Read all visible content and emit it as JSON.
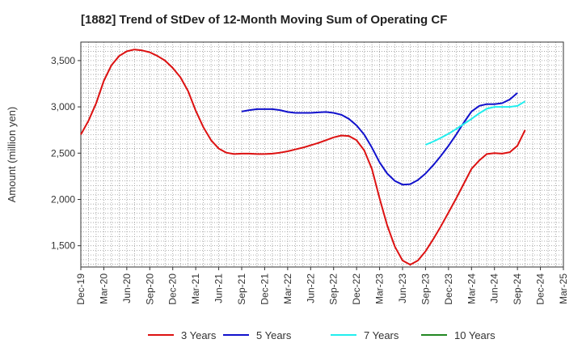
{
  "chart_data": {
    "type": "line",
    "title": "[1882]  Trend of StDev of 12-Month Moving Sum of Operating CF",
    "xlabel": "",
    "ylabel": "Amount (million yen)",
    "ylim": [
      1270,
      3700
    ],
    "y_ticks": [
      1500,
      2000,
      2500,
      3000,
      3500
    ],
    "y_tick_labels": [
      "1,500",
      "2,000",
      "2,500",
      "3,000",
      "3,500"
    ],
    "x_start": "Dec-19",
    "x_tick_labels": [
      "Dec-19",
      "Mar-20",
      "Jun-20",
      "Sep-20",
      "Dec-20",
      "Mar-21",
      "Jun-21",
      "Sep-21",
      "Dec-21",
      "Mar-22",
      "Jun-22",
      "Sep-22",
      "Dec-22",
      "Mar-23",
      "Jun-23",
      "Sep-23",
      "Dec-23",
      "Mar-24",
      "Jun-24",
      "Sep-24",
      "Dec-24",
      "Mar-25"
    ],
    "grid": true,
    "legend_position": "bottom",
    "series": [
      {
        "name": "3 Years",
        "color": "#dd1111",
        "start_month_index": 0,
        "values": [
          2700,
          2850,
          3040,
          3280,
          3450,
          3550,
          3600,
          3620,
          3610,
          3590,
          3550,
          3500,
          3420,
          3320,
          3170,
          2960,
          2780,
          2640,
          2550,
          2505,
          2490,
          2495,
          2495,
          2490,
          2490,
          2495,
          2505,
          2520,
          2540,
          2560,
          2585,
          2610,
          2640,
          2670,
          2690,
          2685,
          2640,
          2530,
          2330,
          2010,
          1720,
          1490,
          1340,
          1295,
          1340,
          1440,
          1570,
          1710,
          1860,
          2010,
          2170,
          2330,
          2420,
          2490,
          2500,
          2495,
          2510,
          2580,
          2750
        ]
      },
      {
        "name": "5 Years",
        "color": "#1111cc",
        "start_month_index": 21,
        "values": [
          2950,
          2965,
          2975,
          2975,
          2975,
          2965,
          2945,
          2935,
          2935,
          2935,
          2940,
          2945,
          2935,
          2915,
          2870,
          2800,
          2700,
          2560,
          2400,
          2280,
          2200,
          2160,
          2165,
          2210,
          2280,
          2370,
          2470,
          2580,
          2700,
          2830,
          2950,
          3010,
          3030,
          3030,
          3040,
          3080,
          3150
        ]
      },
      {
        "name": "7 Years",
        "color": "#22eeee",
        "start_month_index": 45,
        "values": [
          2590,
          2625,
          2665,
          2710,
          2760,
          2815,
          2870,
          2930,
          2980,
          3000,
          3000,
          3000,
          3010,
          3060
        ]
      },
      {
        "name": "10 Years",
        "color": "#228822",
        "start_month_index": 0,
        "values": []
      }
    ]
  }
}
